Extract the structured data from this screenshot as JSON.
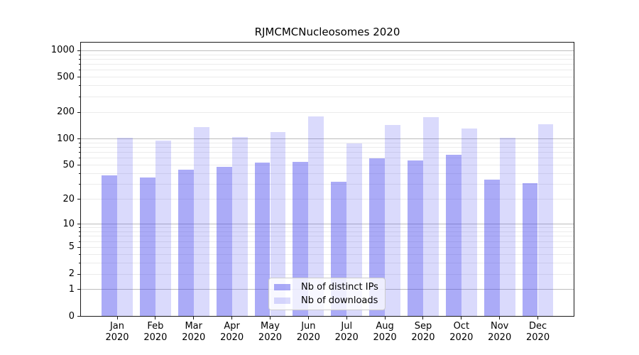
{
  "chart_data": {
    "type": "bar",
    "title": "RJMCMCNucleosomes 2020",
    "year_label": "2020",
    "categories": [
      "Jan",
      "Feb",
      "Mar",
      "Apr",
      "May",
      "Jun",
      "Jul",
      "Aug",
      "Sep",
      "Oct",
      "Nov",
      "Dec"
    ],
    "series": [
      {
        "name": "Nb of distinct IPs",
        "color": "rgba(68,68,238,0.45)",
        "values": [
          38,
          36,
          44,
          48,
          53,
          54,
          32,
          60,
          57,
          66,
          34,
          31
        ]
      },
      {
        "name": "Nb of downloads",
        "color": "rgba(68,68,238,0.2)",
        "values": [
          102,
          96,
          136,
          105,
          120,
          180,
          88,
          145,
          177,
          132,
          102,
          148
        ]
      }
    ],
    "yscale": "log10(1+v)",
    "ylim": [
      0,
      1220
    ],
    "ytick_values": [
      0,
      1,
      2,
      5,
      10,
      20,
      50,
      100,
      200,
      500,
      1000
    ],
    "ytick_labels": [
      "0",
      "1",
      "2",
      "5",
      "10",
      "20",
      "50",
      "100",
      "200",
      "500",
      "1000"
    ],
    "minor_grid_values": [
      2,
      3,
      4,
      5,
      6,
      7,
      8,
      9,
      20,
      30,
      40,
      50,
      60,
      70,
      80,
      90,
      200,
      300,
      400,
      500,
      600,
      700,
      800,
      900
    ],
    "major_grid_values": [
      1,
      10,
      100,
      1000
    ],
    "grid": "on",
    "legend_position": "lower center",
    "colors": {
      "major_grid": "#bdbdbd",
      "minor_grid": "#ebebeb",
      "spine": "#1a1a1a",
      "legend_border": "#cccccc"
    }
  }
}
